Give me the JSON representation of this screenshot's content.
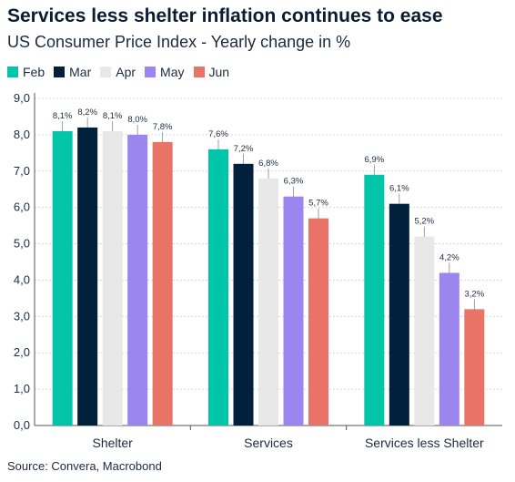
{
  "title": "Services less shelter inflation continues to ease",
  "subtitle": "US Consumer Price Index - Yearly change in %",
  "source": "Source: Convera, Macrobond",
  "chart_data": {
    "type": "bar",
    "title": "Services less shelter inflation continues to ease",
    "subtitle": "US Consumer Price Index - Yearly change in %",
    "xlabel": "",
    "ylabel": "",
    "ylim": [
      0,
      9
    ],
    "yticks": [
      0,
      1,
      2,
      3,
      4,
      5,
      6,
      7,
      8,
      9
    ],
    "ytick_labels": [
      "0,0",
      "1,0",
      "2,0",
      "3,0",
      "4,0",
      "5,0",
      "6,0",
      "7,0",
      "8,0",
      "9,0"
    ],
    "grid": true,
    "legend_position": "top-left",
    "categories": [
      "Shelter",
      "Services",
      "Services less Shelter"
    ],
    "series": [
      {
        "name": "Feb",
        "color": "#00c5a8",
        "values": [
          8.1,
          7.6,
          6.9
        ],
        "labels": [
          "8,1%",
          "7,6%",
          "6,9%"
        ]
      },
      {
        "name": "Mar",
        "color": "#00203c",
        "values": [
          8.2,
          7.2,
          6.1
        ],
        "labels": [
          "8,2%",
          "7,2%",
          "6,1%"
        ]
      },
      {
        "name": "Apr",
        "color": "#e8e8e8",
        "values": [
          8.1,
          6.8,
          5.2
        ],
        "labels": [
          "8,1%",
          "6,8%",
          "5,2%"
        ]
      },
      {
        "name": "May",
        "color": "#9b86ef",
        "values": [
          8.0,
          6.3,
          4.2
        ],
        "labels": [
          "8,0%",
          "6,3%",
          "4,2%"
        ]
      },
      {
        "name": "Jun",
        "color": "#ea7368",
        "values": [
          7.8,
          5.7,
          3.2
        ],
        "labels": [
          "7,8%",
          "5,7%",
          "3,2%"
        ]
      }
    ]
  }
}
